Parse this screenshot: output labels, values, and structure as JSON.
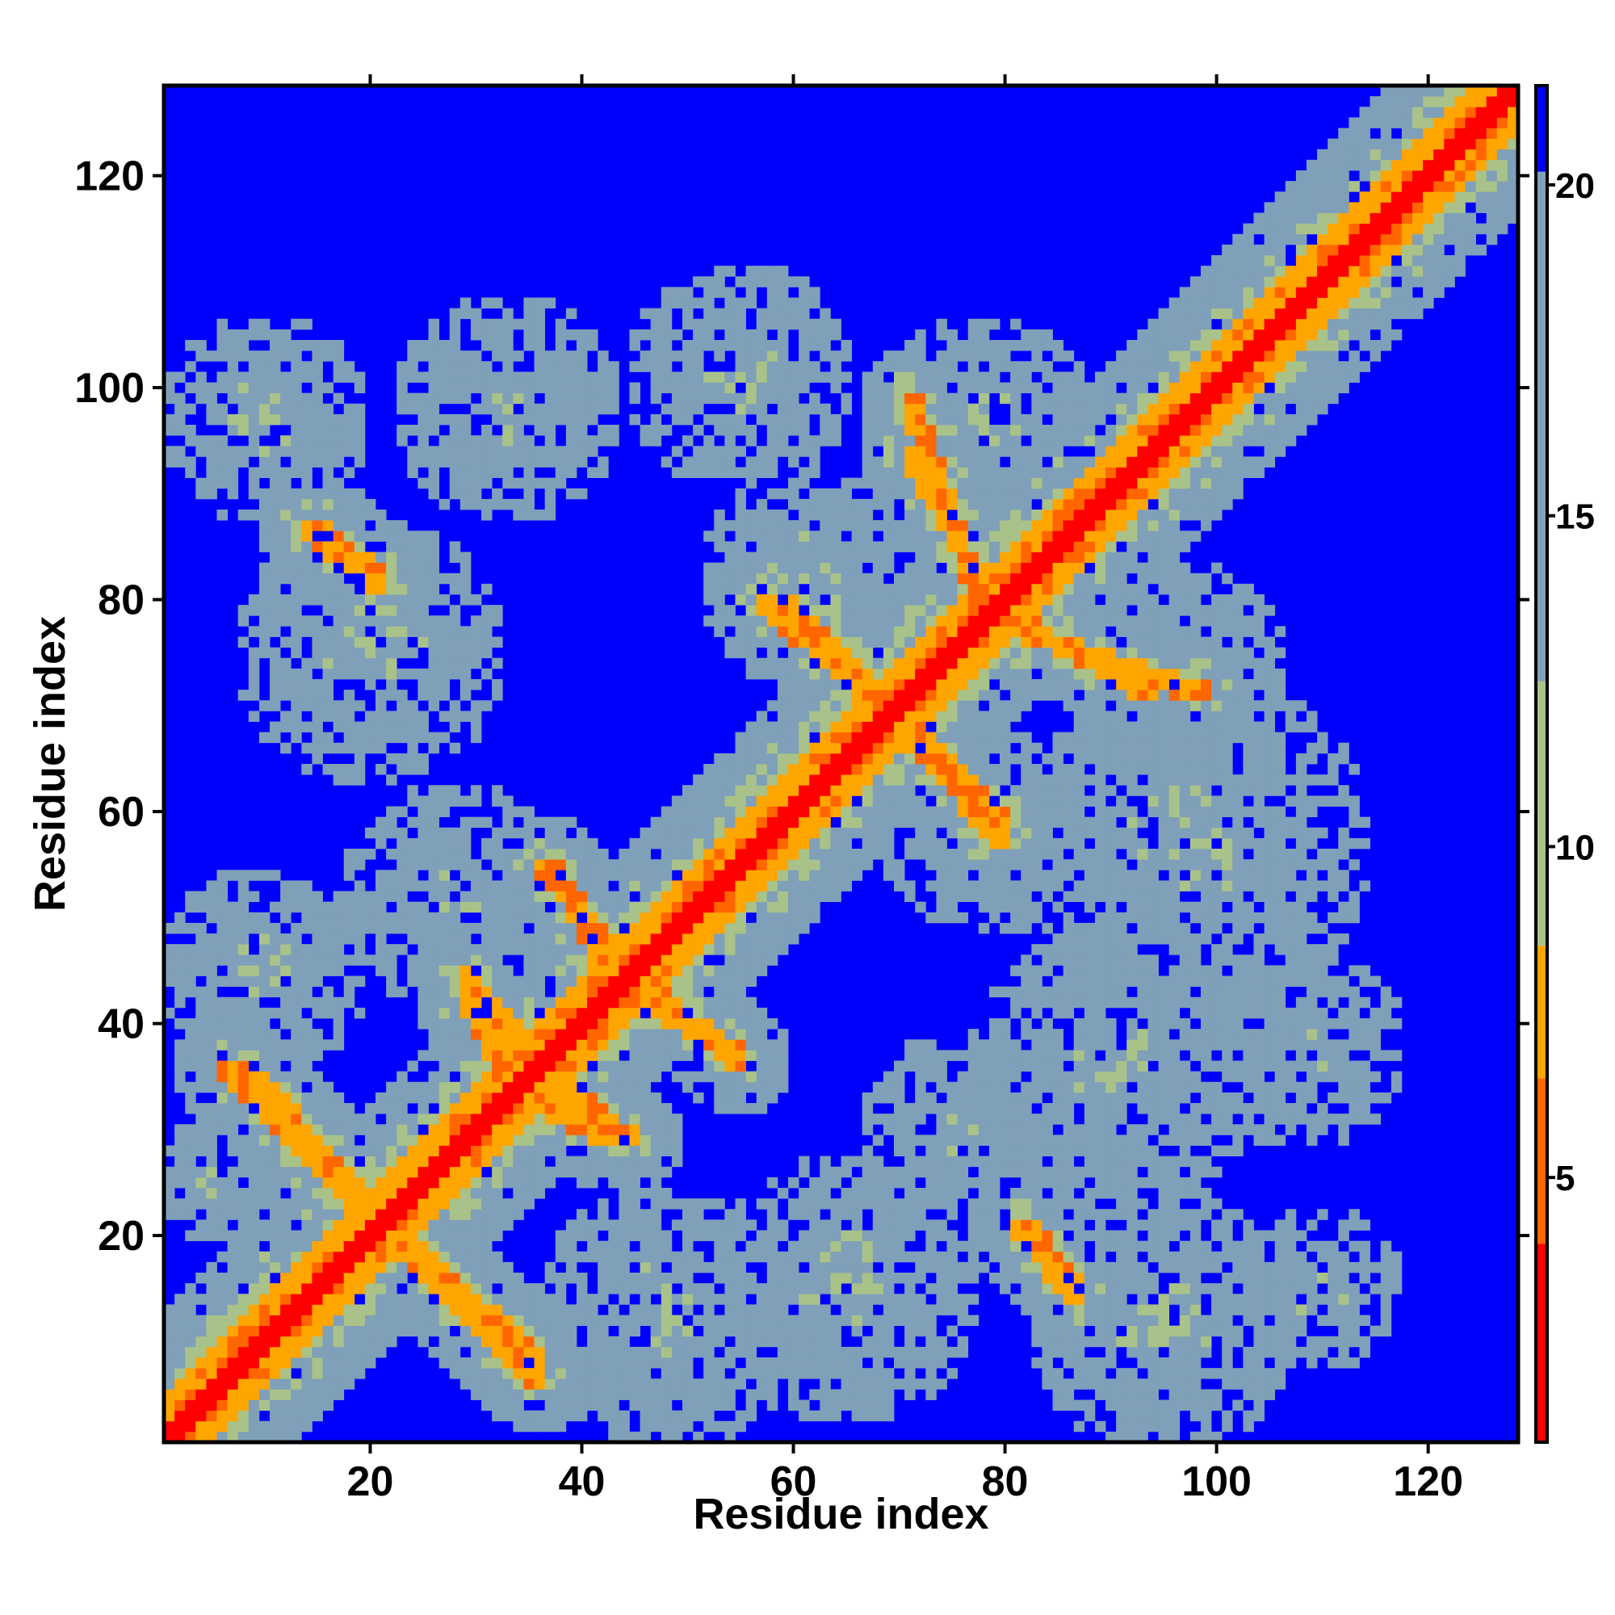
{
  "chart_data": {
    "type": "heatmap",
    "title": "",
    "xlabel": "Residue index",
    "ylabel": "Residue index",
    "xlim": [
      1,
      128
    ],
    "ylim": [
      1,
      128
    ],
    "x_ticks": [
      20,
      40,
      60,
      80,
      100,
      120
    ],
    "y_ticks": [
      20,
      40,
      60,
      80,
      100,
      120
    ],
    "colorbar": {
      "min": 1,
      "max": 21.5,
      "ticks": [
        5,
        10,
        15,
        20
      ],
      "bands": [
        {
          "from": 1,
          "to": 4,
          "color": "#ff0000"
        },
        {
          "from": 4,
          "to": 6.5,
          "color": "#ff6600"
        },
        {
          "from": 6.5,
          "to": 8.5,
          "color": "#ffa500"
        },
        {
          "from": 8.5,
          "to": 12.5,
          "color": "#a9c28a"
        },
        {
          "from": 12.5,
          "to": 21.5,
          "color": "#7fa0b8"
        }
      ],
      "top_color": "#0000ff"
    },
    "background_value": 21.5,
    "description_model": {
      "diagonal": {
        "halfwidth_core": 1.5,
        "halfwidth_orange": 4,
        "halfwidth_halo": 12
      },
      "strands": [
        {
          "name": "s1",
          "i": [
            1,
            13
          ],
          "j": [
            23,
            35
          ]
        },
        {
          "name": "s2",
          "i": [
            26,
            36
          ],
          "j": [
            37,
            47
          ]
        },
        {
          "name": "s3",
          "i": [
            37,
            47
          ],
          "j": [
            54,
            63
          ]
        },
        {
          "name": "s4",
          "i": [
            63,
            73
          ],
          "j": [
            73,
            83
          ]
        },
        {
          "name": "s5",
          "i": [
            71,
            78
          ],
          "j": [
            85,
            93
          ]
        }
      ],
      "antiparallel": [
        {
          "i1": 8,
          "j1": 36,
          "i2": 19,
          "j2": 24
        },
        {
          "i1": 23,
          "j1": 19,
          "i2": 36,
          "j2": 6
        },
        {
          "i1": 29,
          "j1": 45,
          "i2": 38,
          "j2": 33
        },
        {
          "i1": 35,
          "j1": 33,
          "i2": 43,
          "j2": 29
        },
        {
          "i1": 36,
          "j1": 55,
          "i2": 46,
          "j2": 44
        },
        {
          "i1": 44,
          "j1": 43,
          "i2": 55,
          "j2": 37
        },
        {
          "i1": 59,
          "j1": 80,
          "i2": 68,
          "j2": 71
        },
        {
          "i1": 71,
          "j1": 67,
          "i2": 80,
          "j2": 57
        },
        {
          "i1": 71,
          "j1": 94,
          "i2": 79,
          "j2": 79
        },
        {
          "i1": 79,
          "j1": 78,
          "i2": 99,
          "j2": 71
        },
        {
          "i1": 15,
          "j1": 87,
          "i2": 21,
          "j2": 82
        },
        {
          "i1": 81,
          "j1": 21,
          "i2": 87,
          "j2": 14
        }
      ],
      "blobs": [
        {
          "x": 10,
          "y": 97,
          "r": 10
        },
        {
          "x": 33,
          "y": 98,
          "r": 11
        },
        {
          "x": 55,
          "y": 101,
          "r": 11
        },
        {
          "x": 78,
          "y": 96,
          "r": 11
        },
        {
          "x": 20,
          "y": 75,
          "r": 13
        },
        {
          "x": 62,
          "y": 82,
          "r": 11
        },
        {
          "x": 96,
          "y": 73,
          "r": 11
        },
        {
          "x": 98,
          "y": 57,
          "r": 17
        },
        {
          "x": 78,
          "y": 58,
          "r": 10
        },
        {
          "x": 10,
          "y": 45,
          "r": 10
        },
        {
          "x": 28,
          "y": 52,
          "r": 11
        },
        {
          "x": 58,
          "y": 58,
          "r": 8
        },
        {
          "x": 90,
          "y": 35,
          "r": 14
        },
        {
          "x": 108,
          "y": 38,
          "r": 10
        },
        {
          "x": 48,
          "y": 12,
          "r": 13
        },
        {
          "x": 65,
          "y": 15,
          "r": 13
        },
        {
          "x": 95,
          "y": 12,
          "r": 13
        },
        {
          "x": 75,
          "y": 30,
          "r": 9
        },
        {
          "x": 5,
          "y": 25,
          "r": 6
        },
        {
          "x": 110,
          "y": 15,
          "r": 8
        }
      ]
    }
  }
}
